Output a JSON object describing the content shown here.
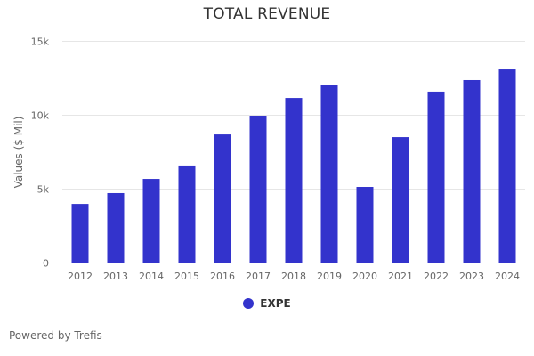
{
  "chart_data": {
    "type": "bar",
    "title": "TOTAL REVENUE",
    "xlabel": "",
    "ylabel": "Values ($ Mil)",
    "categories": [
      "2012",
      "2013",
      "2014",
      "2015",
      "2016",
      "2017",
      "2018",
      "2019",
      "2020",
      "2021",
      "2022",
      "2023",
      "2024"
    ],
    "series": [
      {
        "name": "EXPE",
        "color": "#3333cc",
        "values": [
          3970,
          4700,
          5660,
          6570,
          8670,
          9940,
          11140,
          11990,
          5120,
          8490,
          11570,
          12350,
          13070
        ]
      }
    ],
    "ylim": [
      0,
      15000
    ],
    "yticks": [
      0,
      5000,
      10000,
      15000
    ],
    "ytick_labels": [
      "0",
      "5k",
      "10k",
      "15k"
    ],
    "grid": true,
    "legend_position": "bottom-center"
  },
  "credits": "Powered by Trefis"
}
